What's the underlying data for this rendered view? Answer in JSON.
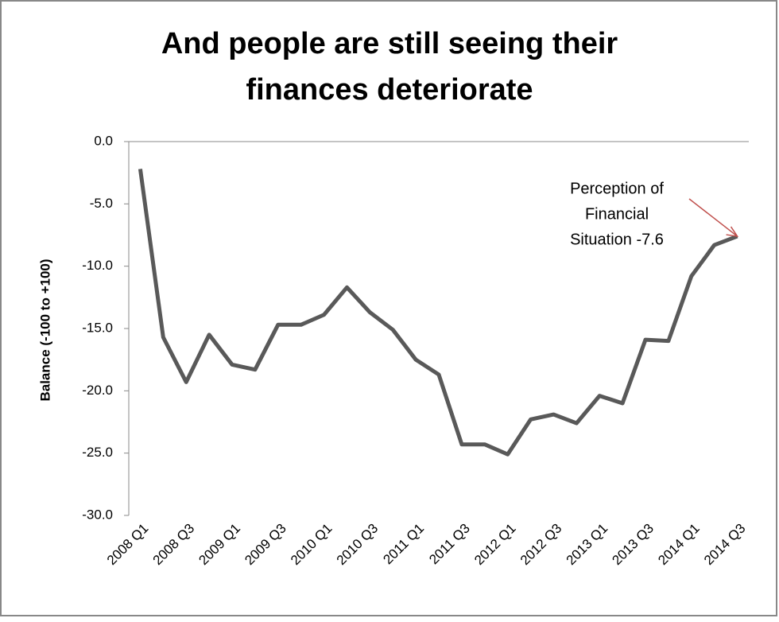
{
  "chart_data": {
    "type": "line",
    "title": [
      "And people are still seeing their",
      "finances deteriorate"
    ],
    "y_label": "Balance  (-100 to +100)",
    "categories": [
      "2008 Q1",
      null,
      "2008 Q3",
      null,
      "2009 Q1",
      null,
      "2009 Q3",
      null,
      "2010 Q1",
      null,
      "2010 Q3",
      null,
      "2011 Q1",
      null,
      "2011 Q3",
      null,
      "2012 Q1",
      null,
      "2012 Q3",
      null,
      "2013 Q1",
      null,
      "2013 Q3",
      null,
      "2014 Q1",
      null,
      "2014 Q3"
    ],
    "series": [
      {
        "color": "#595959",
        "values": [
          -2.2,
          -15.7,
          -19.3,
          -15.5,
          -17.9,
          -18.3,
          -14.7,
          -14.7,
          -13.9,
          -11.7,
          -13.7,
          -15.1,
          -17.5,
          -18.7,
          -24.3,
          -24.3,
          -25.1,
          -22.3,
          -21.9,
          -22.6,
          -20.4,
          -21.0,
          -15.9,
          -16.0,
          -10.8,
          -8.3,
          -7.6
        ]
      }
    ],
    "ylim": [
      -30,
      0
    ],
    "yticks": [
      {
        "value": -30,
        "label": "-30.0"
      },
      {
        "value": -25,
        "label": "-25.0"
      },
      {
        "value": -20,
        "label": "-20.0"
      },
      {
        "value": -15,
        "label": "-15.0"
      },
      {
        "value": -10,
        "label": "-10.0"
      },
      {
        "value": -5,
        "label": "-5.0"
      },
      {
        "value": 0,
        "label": "0.0"
      }
    ],
    "annotation": {
      "lines": [
        "Perception of",
        "Financial",
        "Situation -7.6"
      ],
      "color": "#c0504d"
    },
    "grid": false
  }
}
